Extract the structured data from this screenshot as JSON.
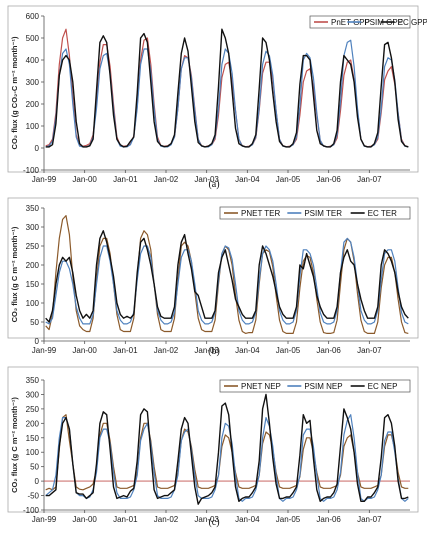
{
  "chart_data": [
    {
      "type": "line",
      "panel_label": "(a)",
      "ylabel": "CO₂ flux (g CO₂-C m⁻² month⁻¹)",
      "ylim": [
        -100,
        600
      ],
      "yticks": [
        -100,
        0,
        100,
        200,
        300,
        400,
        500,
        600
      ],
      "xticks": [
        "Jan-99",
        "Jan-00",
        "Jan-01",
        "Jan-02",
        "Jan-03",
        "Jan-04",
        "Jan-05",
        "Jan-06",
        "Jan-07"
      ],
      "zero_line": false,
      "legend": "top-right",
      "series": [
        {
          "name": "PnET GPP",
          "color": "#c0504d",
          "values": [
            10,
            15,
            40,
            160,
            380,
            500,
            540,
            420,
            230,
            60,
            12,
            8,
            12,
            20,
            60,
            200,
            390,
            470,
            470,
            370,
            200,
            50,
            12,
            8,
            10,
            18,
            55,
            190,
            400,
            490,
            500,
            380,
            200,
            50,
            10,
            8,
            10,
            20,
            50,
            180,
            360,
            420,
            410,
            330,
            180,
            40,
            10,
            6,
            10,
            15,
            40,
            150,
            320,
            380,
            390,
            300,
            170,
            40,
            10,
            6,
            8,
            15,
            45,
            170,
            340,
            390,
            390,
            310,
            170,
            40,
            10,
            6,
            8,
            15,
            40,
            150,
            300,
            350,
            360,
            280,
            150,
            35,
            8,
            5,
            8,
            15,
            45,
            170,
            330,
            390,
            400,
            310,
            170,
            40,
            10,
            6,
            8,
            15,
            40,
            160,
            310,
            350,
            370,
            290,
            160,
            40,
            10,
            6
          ]
        },
        {
          "name": "PSIM GPP",
          "color": "#4f81bd",
          "values": [
            5,
            10,
            30,
            140,
            330,
            430,
            450,
            380,
            200,
            50,
            8,
            5,
            5,
            12,
            50,
            180,
            360,
            420,
            430,
            340,
            180,
            40,
            8,
            5,
            5,
            15,
            50,
            180,
            380,
            450,
            450,
            350,
            180,
            40,
            8,
            5,
            5,
            15,
            50,
            180,
            360,
            410,
            410,
            320,
            170,
            40,
            8,
            5,
            5,
            15,
            50,
            180,
            380,
            450,
            430,
            340,
            170,
            40,
            8,
            5,
            5,
            15,
            50,
            180,
            380,
            440,
            420,
            330,
            170,
            40,
            8,
            5,
            5,
            15,
            50,
            190,
            400,
            430,
            410,
            320,
            160,
            35,
            8,
            5,
            5,
            15,
            60,
            210,
            420,
            480,
            490,
            370,
            180,
            40,
            8,
            5,
            5,
            15,
            50,
            180,
            370,
            410,
            400,
            310,
            160,
            35,
            8,
            5
          ]
        },
        {
          "name": "EC GPP",
          "color": "#111111",
          "values": [
            5,
            5,
            15,
            110,
            330,
            400,
            420,
            400,
            300,
            120,
            20,
            5,
            5,
            10,
            40,
            260,
            480,
            510,
            480,
            330,
            150,
            40,
            15,
            5,
            8,
            30,
            50,
            250,
            500,
            520,
            480,
            300,
            120,
            30,
            12,
            6,
            8,
            20,
            60,
            250,
            430,
            500,
            440,
            280,
            120,
            25,
            10,
            5,
            8,
            20,
            60,
            280,
            540,
            500,
            430,
            260,
            90,
            20,
            10,
            5,
            5,
            20,
            60,
            270,
            500,
            480,
            400,
            250,
            120,
            30,
            10,
            5,
            5,
            20,
            70,
            290,
            420,
            420,
            400,
            240,
            80,
            20,
            10,
            5,
            5,
            20,
            80,
            300,
            420,
            400,
            380,
            300,
            140,
            40,
            10,
            5,
            5,
            20,
            70,
            280,
            470,
            480,
            410,
            300,
            130,
            30,
            10,
            5
          ]
        }
      ]
    },
    {
      "type": "line",
      "panel_label": "(b)",
      "ylabel": "CO₂ flux (g C m⁻² month⁻¹)",
      "ylim": [
        0,
        350
      ],
      "yticks": [
        0,
        50,
        100,
        150,
        200,
        250,
        300,
        350
      ],
      "xticks": [
        "Jan-99",
        "Jan-00",
        "Jan-01",
        "Jan-02",
        "Jan-03",
        "Jan-04",
        "Jan-05",
        "Jan-06",
        "Jan-07"
      ],
      "zero_line": false,
      "legend": "top-right",
      "series": [
        {
          "name": "PNET TER",
          "color": "#8b5a2b",
          "values": [
            40,
            30,
            70,
            180,
            270,
            320,
            330,
            280,
            170,
            80,
            40,
            30,
            25,
            25,
            60,
            160,
            250,
            270,
            270,
            230,
            150,
            70,
            30,
            25,
            25,
            25,
            60,
            170,
            270,
            290,
            280,
            240,
            150,
            70,
            30,
            25,
            25,
            25,
            60,
            160,
            250,
            260,
            250,
            210,
            130,
            60,
            30,
            25,
            25,
            25,
            55,
            150,
            230,
            250,
            240,
            200,
            120,
            55,
            25,
            20,
            22,
            22,
            55,
            150,
            230,
            240,
            235,
            195,
            120,
            55,
            25,
            20,
            20,
            20,
            50,
            140,
            210,
            225,
            220,
            180,
            110,
            50,
            22,
            20,
            20,
            22,
            55,
            150,
            240,
            270,
            260,
            210,
            125,
            55,
            25,
            20,
            20,
            20,
            50,
            140,
            200,
            220,
            220,
            180,
            110,
            50,
            22,
            20
          ]
        },
        {
          "name": "PSIM TER",
          "color": "#4f81bd",
          "values": [
            50,
            45,
            60,
            120,
            180,
            210,
            210,
            190,
            150,
            90,
            60,
            45,
            45,
            45,
            70,
            150,
            220,
            250,
            250,
            210,
            150,
            80,
            55,
            45,
            45,
            50,
            75,
            160,
            230,
            250,
            250,
            220,
            150,
            80,
            55,
            45,
            45,
            50,
            75,
            150,
            220,
            240,
            240,
            210,
            150,
            80,
            55,
            45,
            45,
            50,
            75,
            160,
            230,
            250,
            245,
            215,
            150,
            80,
            55,
            45,
            45,
            50,
            75,
            160,
            230,
            250,
            240,
            210,
            150,
            80,
            55,
            45,
            45,
            50,
            80,
            170,
            240,
            240,
            230,
            200,
            140,
            75,
            50,
            45,
            45,
            50,
            80,
            180,
            260,
            270,
            260,
            220,
            150,
            80,
            55,
            45,
            45,
            50,
            80,
            160,
            230,
            240,
            240,
            210,
            140,
            75,
            50,
            45
          ]
        },
        {
          "name": "EC TER",
          "color": "#111111",
          "values": [
            60,
            50,
            80,
            150,
            200,
            220,
            210,
            220,
            180,
            120,
            80,
            60,
            70,
            60,
            80,
            200,
            270,
            290,
            260,
            220,
            170,
            100,
            70,
            60,
            65,
            60,
            70,
            180,
            260,
            270,
            240,
            200,
            150,
            90,
            65,
            60,
            60,
            60,
            90,
            200,
            260,
            280,
            230,
            190,
            130,
            120,
            90,
            60,
            60,
            60,
            80,
            180,
            220,
            240,
            200,
            160,
            110,
            90,
            70,
            60,
            60,
            60,
            80,
            200,
            250,
            230,
            200,
            170,
            130,
            90,
            70,
            60,
            60,
            60,
            90,
            200,
            190,
            230,
            200,
            170,
            120,
            90,
            70,
            60,
            60,
            60,
            90,
            180,
            220,
            240,
            210,
            200,
            150,
            110,
            80,
            60,
            60,
            60,
            90,
            200,
            240,
            230,
            210,
            180,
            130,
            90,
            70,
            60
          ]
        }
      ]
    },
    {
      "type": "line",
      "panel_label": "(c)",
      "ylabel": "CO₂ flux (g C m⁻² month⁻¹)",
      "ylim": [
        -100,
        350
      ],
      "yticks": [
        -100,
        -50,
        0,
        50,
        100,
        150,
        200,
        250,
        300,
        350
      ],
      "xticks": [
        "Jan-99",
        "Jan-00",
        "Jan-01",
        "Jan-02",
        "Jan-03",
        "Jan-04",
        "Jan-05",
        "Jan-06",
        "Jan-07"
      ],
      "zero_line": true,
      "legend": "top-right",
      "series": [
        {
          "name": "PNET NEP",
          "color": "#8b5a2b",
          "values": [
            -30,
            -25,
            -30,
            -20,
            110,
            220,
            230,
            140,
            60,
            -20,
            -28,
            -30,
            -25,
            -20,
            -10,
            40,
            160,
            200,
            200,
            140,
            50,
            -20,
            -25,
            -25,
            -25,
            -20,
            -15,
            30,
            150,
            200,
            200,
            140,
            50,
            -20,
            -25,
            -25,
            -25,
            -20,
            -15,
            30,
            140,
            180,
            170,
            120,
            40,
            -20,
            -25,
            -25,
            -25,
            -20,
            -15,
            20,
            120,
            160,
            150,
            100,
            30,
            -20,
            -25,
            -25,
            -25,
            -20,
            -15,
            20,
            130,
            170,
            160,
            110,
            30,
            -20,
            -25,
            -25,
            -25,
            -20,
            -15,
            15,
            110,
            150,
            150,
            100,
            30,
            -20,
            -25,
            -25,
            -25,
            -20,
            -15,
            20,
            120,
            150,
            160,
            100,
            30,
            -20,
            -25,
            -25,
            -25,
            -20,
            -15,
            20,
            120,
            160,
            160,
            110,
            30,
            -20,
            -25,
            -25
          ]
        },
        {
          "name": "PSIM NEP",
          "color": "#4f81bd",
          "values": [
            -50,
            -40,
            -30,
            20,
            150,
            220,
            220,
            180,
            60,
            -40,
            -50,
            -50,
            -60,
            -55,
            -30,
            30,
            150,
            180,
            180,
            130,
            30,
            -40,
            -60,
            -60,
            -60,
            -55,
            -30,
            20,
            140,
            180,
            200,
            130,
            30,
            -50,
            -60,
            -60,
            -60,
            -55,
            -30,
            20,
            140,
            170,
            180,
            110,
            20,
            -50,
            -60,
            -60,
            -60,
            -55,
            -30,
            20,
            150,
            200,
            190,
            130,
            20,
            -60,
            -70,
            -60,
            -60,
            -55,
            -30,
            20,
            150,
            220,
            190,
            120,
            20,
            -60,
            -70,
            -60,
            -60,
            -55,
            -30,
            20,
            160,
            180,
            180,
            120,
            20,
            -60,
            -70,
            -60,
            -60,
            -55,
            -30,
            30,
            160,
            210,
            230,
            150,
            30,
            -60,
            -70,
            -60,
            -60,
            -55,
            -30,
            20,
            140,
            170,
            170,
            100,
            10,
            -60,
            -70,
            -60
          ]
        },
        {
          "name": "EC NEP",
          "color": "#111111",
          "values": [
            -50,
            -50,
            -40,
            -30,
            120,
            200,
            220,
            180,
            60,
            -40,
            -45,
            -45,
            -60,
            -50,
            -40,
            60,
            200,
            240,
            230,
            110,
            -20,
            -60,
            -55,
            -50,
            -55,
            -35,
            -25,
            70,
            230,
            250,
            240,
            100,
            -30,
            -60,
            -55,
            -50,
            -50,
            -40,
            -30,
            70,
            180,
            220,
            200,
            90,
            -20,
            -80,
            -60,
            -55,
            -50,
            -40,
            -20,
            100,
            260,
            270,
            230,
            100,
            -20,
            -70,
            -60,
            -55,
            -55,
            -40,
            -20,
            70,
            250,
            300,
            200,
            80,
            -10,
            -60,
            -60,
            -55,
            -55,
            -40,
            -20,
            90,
            230,
            200,
            210,
            80,
            -30,
            -70,
            -60,
            -55,
            -55,
            -40,
            -10,
            120,
            250,
            220,
            180,
            100,
            -10,
            -70,
            -70,
            -55,
            -55,
            -40,
            -20,
            80,
            220,
            230,
            200,
            120,
            0,
            -60,
            -60,
            -55
          ]
        }
      ]
    }
  ]
}
